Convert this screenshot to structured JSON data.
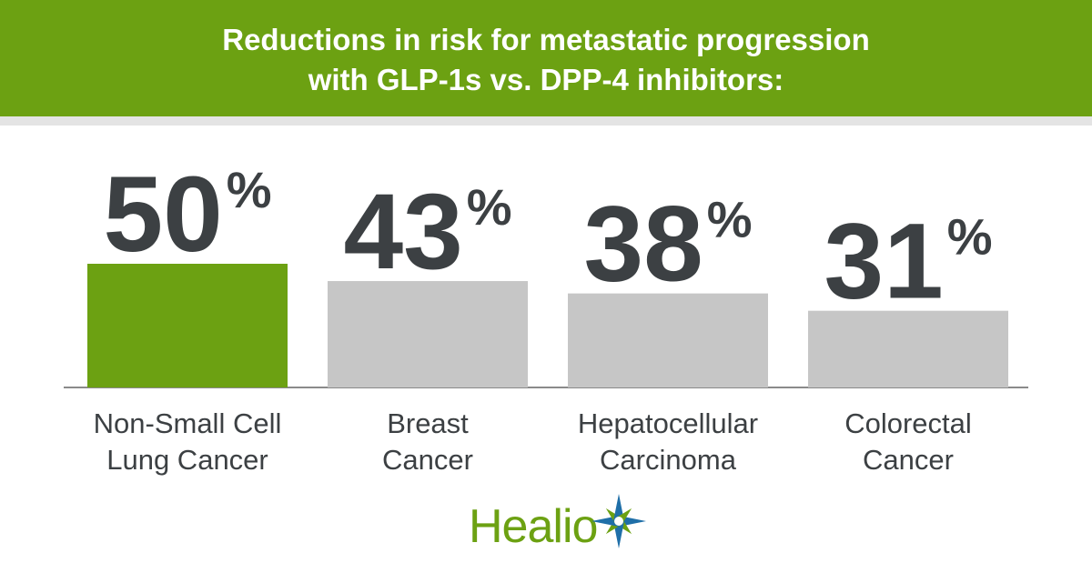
{
  "title": "Reductions in risk for metastatic progression\nwith GLP-1s vs. DPP-4 inhibitors:",
  "chart_data": {
    "type": "bar",
    "categories": [
      "Non-Small Cell\nLung Cancer",
      "Breast\nCancer",
      "Hepatocellular\nCarcinoma",
      "Colorectal\nCancer"
    ],
    "values": [
      50,
      43,
      38,
      31
    ],
    "value_labels": [
      "50",
      "43",
      "38",
      "31"
    ],
    "value_unit": "%",
    "highlight_index": 0,
    "ylim": [
      0,
      100
    ],
    "grid": false,
    "legend": "none"
  },
  "colors": {
    "header_green": "#6ca112",
    "highlight_bar": "#6ca112",
    "bar_gray": "#c6c6c6",
    "value_text": "#3c4043",
    "baseline": "#8a8a8a"
  },
  "logo": {
    "text": "Healio",
    "icon": "star-burst-icon",
    "star_color": "#1f6fa8"
  }
}
